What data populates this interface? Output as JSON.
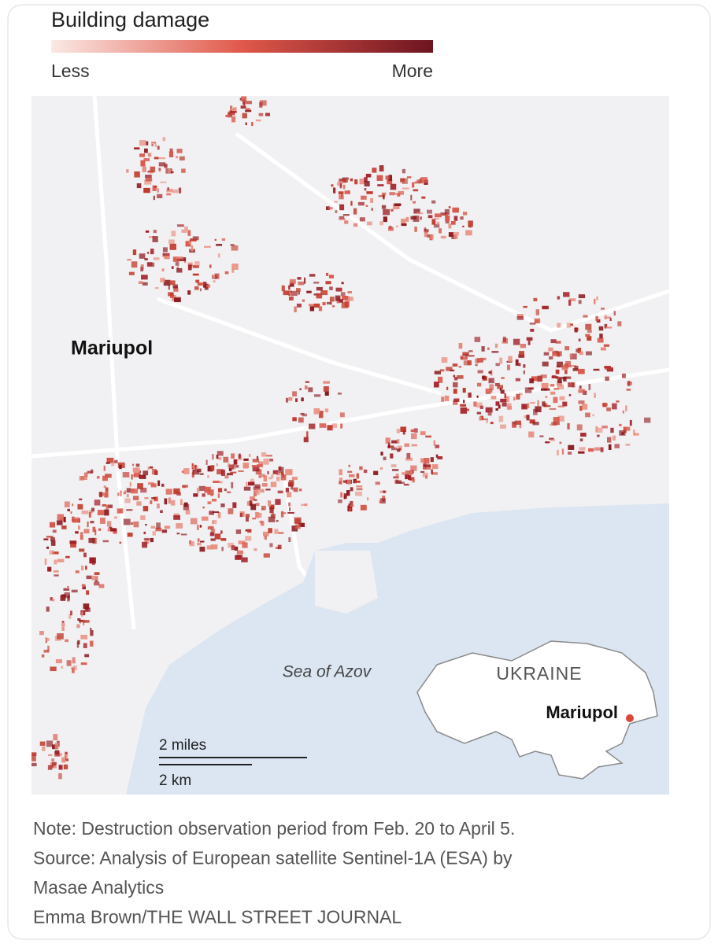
{
  "legend": {
    "title": "Building damage",
    "low": "Less",
    "high": "More"
  },
  "map": {
    "city_label": "Mariupol",
    "sea_label": "Sea of Azov",
    "inset": {
      "country": "UKRAINE",
      "city": "Mariupol"
    },
    "scale": {
      "miles": "2 miles",
      "km": "2 km"
    }
  },
  "notes": [
    "Note: Destruction observation period from Feb. 20 to April 5.",
    "Source: Analysis of European satellite Sentinel-1A (ESA) by",
    "Masae Analytics",
    "Emma Brown/THE WALL STREET JOURNAL"
  ]
}
